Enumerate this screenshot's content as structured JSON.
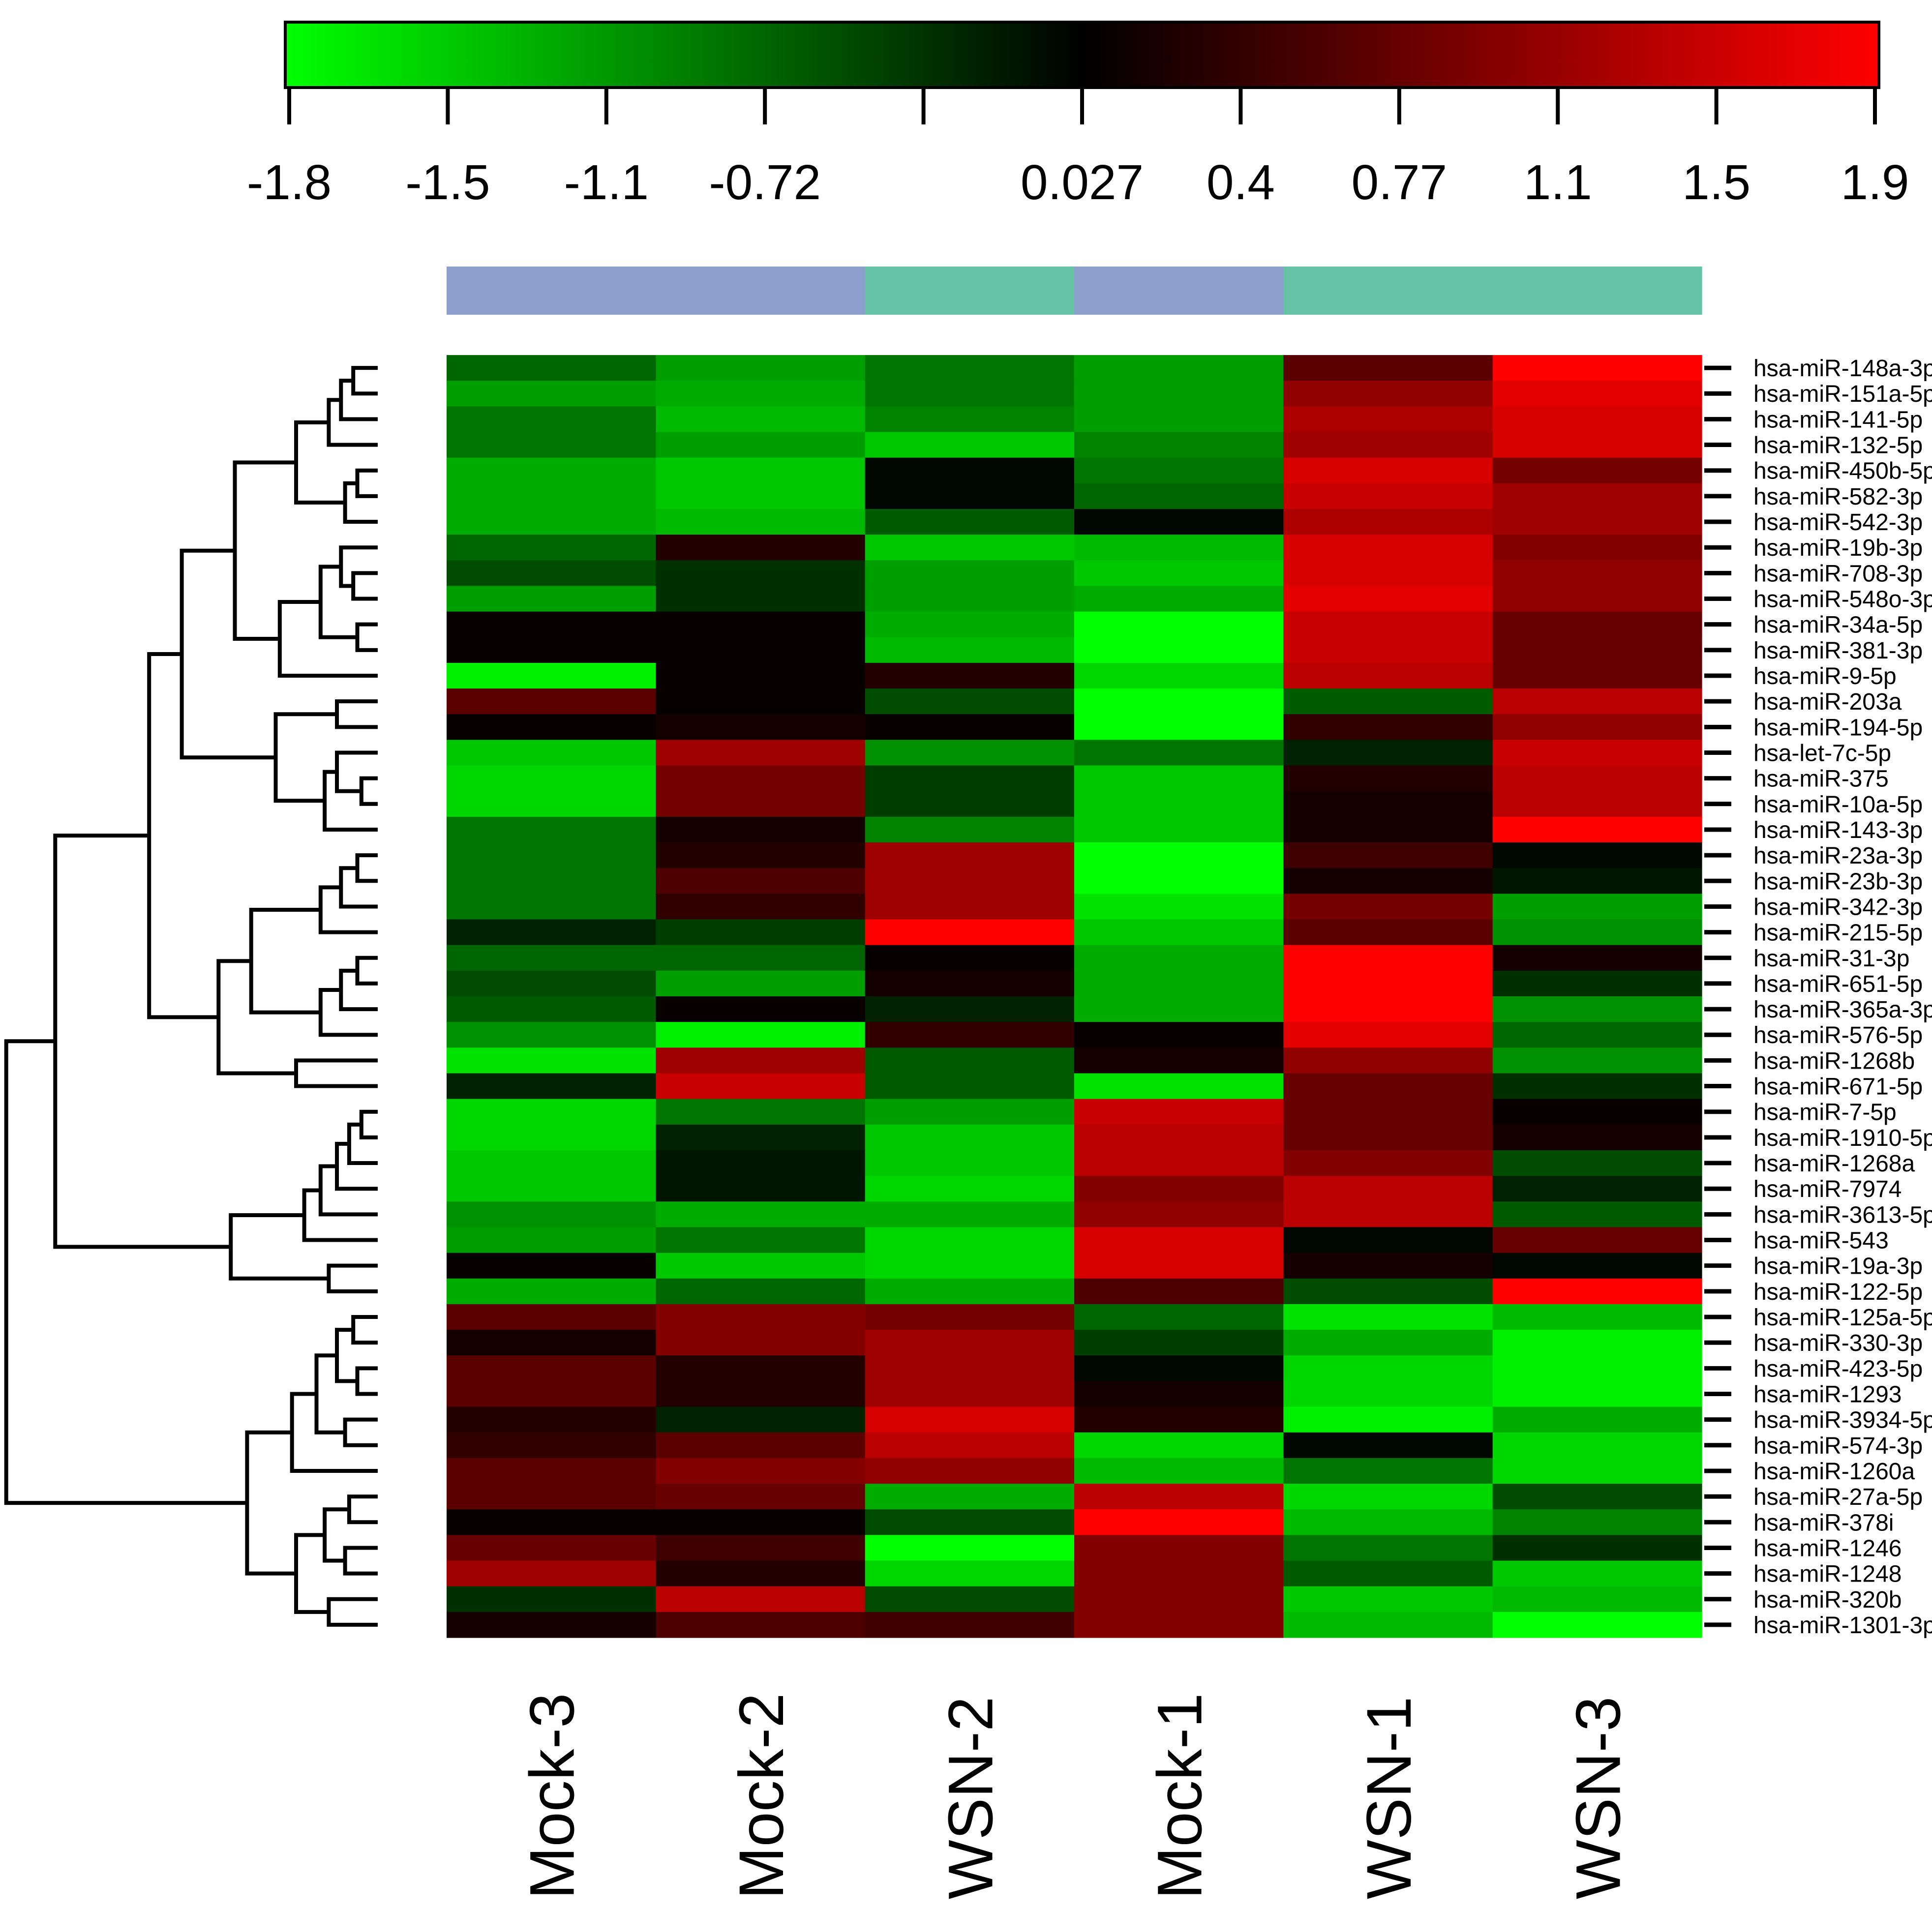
{
  "chart_data": {
    "type": "heatmap",
    "title": "",
    "color_key": {
      "ticks": [
        "-1.8",
        "-1.5",
        "-1.1",
        "-0.72",
        "",
        "0.027",
        "0.4",
        "0.77",
        "1.1",
        "1.5",
        "1.9"
      ],
      "tick_values": [
        -1.8,
        -1.5,
        -1.1,
        -0.72,
        -0.35,
        0.027,
        0.4,
        0.77,
        1.1,
        1.5,
        1.9
      ],
      "min": -1.8,
      "max": 1.9,
      "low_color": "#00ff00",
      "mid_color": "#000000",
      "high_color": "#ff0000"
    },
    "columns": [
      "Mock-3",
      "Mock-2",
      "WSN-2",
      "Mock-1",
      "WSN-1",
      "WSN-3"
    ],
    "column_groups": [
      "Mock",
      "Mock",
      "WSN",
      "Mock",
      "WSN",
      "WSN"
    ],
    "group_colors": {
      "Mock": "#8d9fcc",
      "WSN": "#66c2a5"
    },
    "rows": [
      "hsa-miR-148a-3p",
      "hsa-miR-151a-5p",
      "hsa-miR-141-5p",
      "hsa-miR-132-5p",
      "hsa-miR-450b-5p",
      "hsa-miR-582-3p",
      "hsa-miR-542-3p",
      "hsa-miR-19b-3p",
      "hsa-miR-708-3p",
      "hsa-miR-548o-3p",
      "hsa-miR-34a-5p",
      "hsa-miR-381-3p",
      "hsa-miR-9-5p",
      "hsa-miR-203a",
      "hsa-miR-194-5p",
      "hsa-let-7c-5p",
      "hsa-miR-375",
      "hsa-miR-10a-5p",
      "hsa-miR-143-3p",
      "hsa-miR-23a-3p",
      "hsa-miR-23b-3p",
      "hsa-miR-342-3p",
      "hsa-miR-215-5p",
      "hsa-miR-31-3p",
      "hsa-miR-651-5p",
      "hsa-miR-365a-3p",
      "hsa-miR-576-5p",
      "hsa-miR-1268b",
      "hsa-miR-671-5p",
      "hsa-miR-7-5p",
      "hsa-miR-1910-5p",
      "hsa-miR-1268a",
      "hsa-miR-7974",
      "hsa-miR-3613-5p",
      "hsa-miR-543",
      "hsa-miR-19a-3p",
      "hsa-miR-122-5p",
      "hsa-miR-125a-5p",
      "hsa-miR-330-3p",
      "hsa-miR-423-5p",
      "hsa-miR-1293",
      "hsa-miR-3934-5p",
      "hsa-miR-574-3p",
      "hsa-miR-1260a",
      "hsa-miR-27a-5p",
      "hsa-miR-378i",
      "hsa-miR-1246",
      "hsa-miR-1248",
      "hsa-miR-320b",
      "hsa-miR-1301-3p"
    ],
    "values": [
      [
        -0.7,
        -1.1,
        -0.8,
        -1.1,
        0.7,
        1.9
      ],
      [
        -1.1,
        -1.2,
        -0.8,
        -1.1,
        1.1,
        1.7
      ],
      [
        -0.8,
        -1.3,
        -0.9,
        -1.1,
        1.3,
        1.6
      ],
      [
        -0.8,
        -1.1,
        -1.4,
        -0.9,
        1.2,
        1.6
      ],
      [
        -1.2,
        -1.4,
        0.0,
        -0.8,
        1.6,
        0.9
      ],
      [
        -1.2,
        -1.4,
        0.0,
        -0.7,
        1.5,
        1.2
      ],
      [
        -1.2,
        -1.3,
        -0.6,
        0.0,
        1.3,
        1.2
      ],
      [
        -0.7,
        0.3,
        -1.4,
        -1.3,
        1.6,
        1.0
      ],
      [
        -0.5,
        -0.3,
        -1.1,
        -1.4,
        1.6,
        1.1
      ],
      [
        -1.1,
        -0.3,
        -1.1,
        -1.2,
        1.7,
        1.1
      ],
      [
        0.1,
        0.1,
        -1.2,
        -1.8,
        1.5,
        0.8
      ],
      [
        0.1,
        0.1,
        -1.3,
        -1.8,
        1.5,
        0.8
      ],
      [
        -1.7,
        0.1,
        0.3,
        -1.5,
        1.4,
        0.8
      ],
      [
        0.7,
        0.1,
        -0.5,
        -1.9,
        -0.6,
        1.4
      ],
      [
        0.1,
        0.2,
        0.1,
        -2.0,
        0.4,
        1.1
      ],
      [
        -1.4,
        1.2,
        -1.0,
        -0.8,
        -0.2,
        1.5
      ],
      [
        -1.5,
        0.9,
        -0.4,
        -1.4,
        0.3,
        1.4
      ],
      [
        -1.5,
        0.9,
        -0.4,
        -1.4,
        0.2,
        1.4
      ],
      [
        -0.8,
        0.2,
        -0.9,
        -1.4,
        0.2,
        1.9
      ],
      [
        -0.8,
        0.3,
        1.2,
        -2.0,
        0.5,
        0.0
      ],
      [
        -0.8,
        0.6,
        1.2,
        -2.0,
        0.2,
        -0.1
      ],
      [
        -0.8,
        0.4,
        1.2,
        -1.6,
        0.9,
        -1.1
      ],
      [
        -0.2,
        -0.4,
        1.9,
        -1.4,
        0.7,
        -1.0
      ],
      [
        -0.7,
        -0.7,
        0.1,
        -1.2,
        1.9,
        0.2
      ],
      [
        -0.5,
        -1.1,
        0.2,
        -1.2,
        1.9,
        -0.3
      ],
      [
        -0.6,
        0.1,
        -0.2,
        -1.2,
        1.9,
        -1.0
      ],
      [
        -1.0,
        -1.7,
        0.4,
        0.1,
        1.7,
        -0.7
      ],
      [
        -1.6,
        1.2,
        -0.6,
        0.2,
        1.1,
        -1.0
      ],
      [
        -0.2,
        1.5,
        -0.6,
        -1.6,
        0.8,
        -0.3
      ],
      [
        -1.5,
        -0.8,
        -1.1,
        1.5,
        0.8,
        0.1
      ],
      [
        -1.5,
        -0.2,
        -1.4,
        1.4,
        0.8,
        0.2
      ],
      [
        -1.4,
        -0.1,
        -1.4,
        1.4,
        1.0,
        -0.5
      ],
      [
        -1.4,
        -0.1,
        -1.5,
        1.0,
        1.4,
        -0.2
      ],
      [
        -1.0,
        -1.2,
        -1.2,
        1.1,
        1.4,
        -0.6
      ],
      [
        -1.1,
        -0.8,
        -1.5,
        1.6,
        0.0,
        0.8
      ],
      [
        0.1,
        -1.4,
        -1.5,
        1.6,
        0.2,
        0.0
      ],
      [
        -1.2,
        -0.7,
        -1.2,
        0.6,
        -0.5,
        1.9
      ],
      [
        0.7,
        1.0,
        0.9,
        -0.7,
        -1.6,
        -1.3
      ],
      [
        0.2,
        1.0,
        1.2,
        -0.4,
        -1.2,
        -1.7
      ],
      [
        0.7,
        0.3,
        1.2,
        0.0,
        -1.5,
        -1.7
      ],
      [
        0.7,
        0.3,
        1.2,
        0.2,
        -1.5,
        -1.7
      ],
      [
        0.3,
        -0.2,
        1.6,
        0.3,
        -1.7,
        -1.2
      ],
      [
        0.4,
        0.7,
        1.4,
        -1.5,
        0.0,
        -1.5
      ],
      [
        0.7,
        1.0,
        1.1,
        -1.3,
        -0.8,
        -1.5
      ],
      [
        0.7,
        0.8,
        -1.2,
        1.4,
        -1.5,
        -0.5
      ],
      [
        0.1,
        0.1,
        -0.5,
        1.9,
        -1.3,
        -0.9
      ],
      [
        0.8,
        0.5,
        -1.9,
        1.0,
        -0.8,
        -0.3
      ],
      [
        1.2,
        0.3,
        -1.5,
        1.0,
        -0.6,
        -1.4
      ],
      [
        -0.3,
        1.4,
        -0.5,
        1.0,
        -1.4,
        -1.3
      ],
      [
        0.2,
        0.6,
        0.5,
        1.0,
        -1.3,
        -1.8
      ]
    ]
  }
}
